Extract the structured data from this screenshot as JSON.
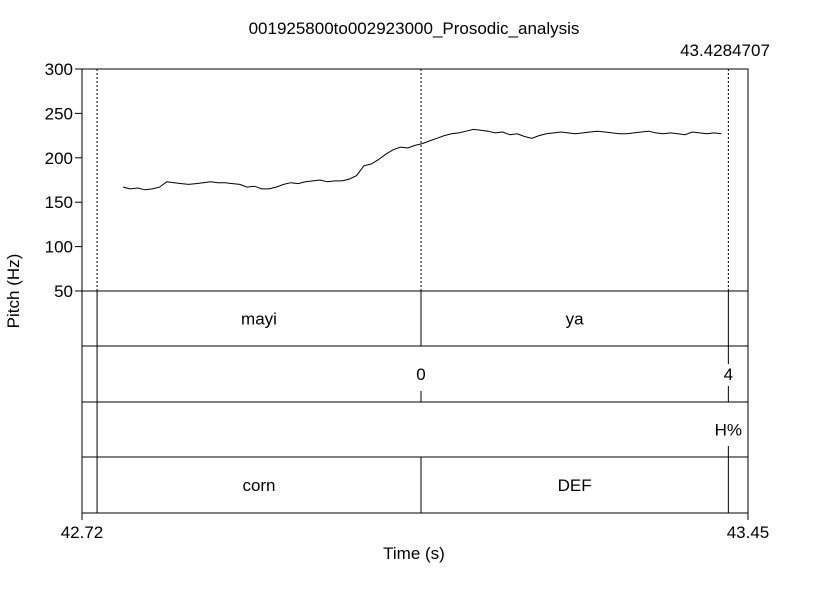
{
  "chart_data": {
    "type": "line",
    "title": "001925800to002923000_Prosodic_analysis",
    "xlabel": "Time (s)",
    "ylabel": "Pitch (Hz)",
    "xlim": [
      42.72,
      43.45
    ],
    "ylim": [
      50,
      300
    ],
    "x_tick_labels": [
      "42.72",
      "43.45"
    ],
    "y_ticks": [
      50,
      100,
      150,
      200,
      250,
      300
    ],
    "cursor_time_label": "43.4284707",
    "cursor_time": 43.4284707,
    "boundary_times": [
      42.7365,
      43.0916,
      43.4284707
    ],
    "series": [
      {
        "x": [
          42.765,
          42.773,
          42.781,
          42.789,
          42.797,
          42.805,
          42.813,
          42.821,
          42.829,
          42.837,
          42.845,
          42.853,
          42.861,
          42.869,
          42.877,
          42.885,
          42.893,
          42.901,
          42.909,
          42.917,
          42.925,
          42.933,
          42.941,
          42.949,
          42.957,
          42.965,
          42.973,
          42.981,
          42.989,
          42.997,
          43.005,
          43.013,
          43.021,
          43.029,
          43.037,
          43.045,
          43.053,
          43.061,
          43.069,
          43.077,
          43.085,
          43.093,
          43.101,
          43.109,
          43.117,
          43.125,
          43.133,
          43.141,
          43.149,
          43.157,
          43.165,
          43.173,
          43.181,
          43.189,
          43.197,
          43.205,
          43.213,
          43.221,
          43.229,
          43.237,
          43.245,
          43.253,
          43.261,
          43.269,
          43.277,
          43.285,
          43.293,
          43.301,
          43.309,
          43.317,
          43.325,
          43.333,
          43.341,
          43.349,
          43.357,
          43.365,
          43.373,
          43.381,
          43.389,
          43.397,
          43.405,
          43.413,
          43.421
        ],
        "values": [
          167,
          165,
          166,
          164,
          165,
          167,
          173,
          172,
          171,
          170,
          171,
          172,
          173,
          172,
          172,
          171,
          170,
          167,
          168,
          165,
          165,
          167,
          170,
          172,
          171,
          173,
          174,
          175,
          173,
          174,
          174,
          176,
          180,
          191,
          193,
          198,
          204,
          209,
          212,
          211,
          214,
          216,
          219,
          222,
          225,
          227,
          228,
          230,
          232,
          231,
          230,
          228,
          229,
          226,
          227,
          224,
          222,
          225,
          227,
          228,
          229,
          228,
          227,
          228,
          229,
          230,
          229,
          228,
          227,
          227,
          228,
          229,
          230,
          228,
          227,
          228,
          227,
          226,
          229,
          228,
          227,
          228,
          227
        ]
      }
    ]
  },
  "tiers": [
    {
      "labels": [
        {
          "text": "mayi",
          "t": 42.914
        },
        {
          "text": "ya",
          "t": 43.26
        }
      ]
    },
    {
      "points": [
        {
          "text": "0",
          "t": 43.0916
        },
        {
          "text": "4",
          "t": 43.4284707
        }
      ]
    },
    {
      "points": [
        {
          "text": "H%",
          "t": 43.4284707
        }
      ]
    },
    {
      "labels": [
        {
          "text": "corn",
          "t": 42.914
        },
        {
          "text": "DEF",
          "t": 43.26
        }
      ]
    }
  ]
}
